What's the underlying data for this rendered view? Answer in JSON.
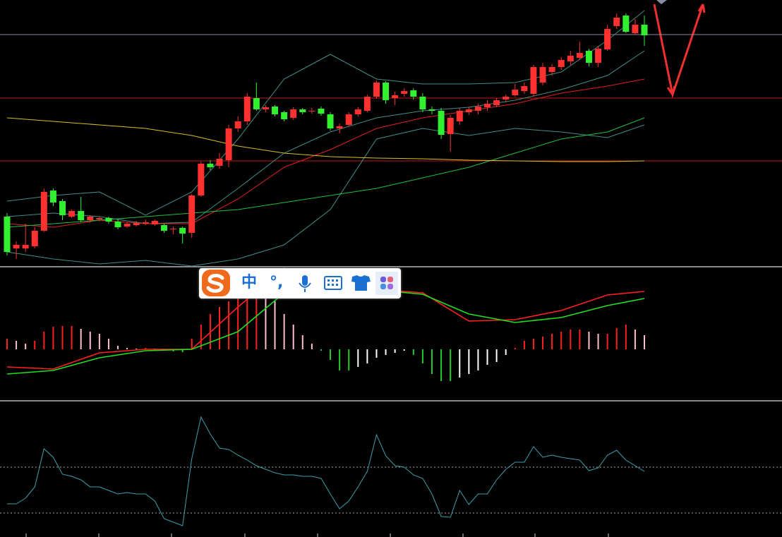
{
  "chart_data": [
    {
      "type": "candlestick",
      "ylim": [
        0,
        377
      ],
      "up_color": "#ff3030",
      "down_color": "#30f030",
      "hlines": [
        {
          "value": 328,
          "color": "#8a8aa0"
        },
        {
          "value": 238,
          "color": "#c01818"
        },
        {
          "value": 149,
          "color": "#c01818"
        }
      ],
      "open": [
        70,
        25,
        25,
        28,
        50,
        107,
        92,
        70,
        78,
        65,
        66,
        68,
        63,
        56,
        58,
        60,
        59,
        58,
        52,
        54,
        47,
        100,
        145,
        142,
        150,
        195,
        205,
        238,
        222,
        226,
        218,
        210,
        222,
        219,
        223,
        215,
        195,
        200,
        215,
        220,
        240,
        260,
        238,
        244,
        249,
        240,
        222,
        220,
        187,
        205,
        218,
        220,
        225,
        228,
        236,
        242,
        248,
        244,
        260,
        275,
        282,
        290,
        295,
        305,
        288,
        307,
        340,
        355,
        330,
        342
      ],
      "high": [
        75,
        35,
        60,
        55,
        110,
        110,
        95,
        80,
        98,
        72,
        70,
        70,
        66,
        62,
        64,
        66,
        66,
        60,
        56,
        56,
        102,
        148,
        150,
        160,
        200,
        212,
        245,
        260,
        228,
        228,
        220,
        225,
        224,
        224,
        226,
        218,
        202,
        218,
        225,
        243,
        263,
        262,
        247,
        252,
        252,
        245,
        226,
        224,
        214,
        224,
        226,
        230,
        235,
        238,
        243,
        258,
        260,
        285,
        288,
        286,
        296,
        305,
        318,
        308,
        312,
        342,
        358,
        358,
        350,
        355
      ],
      "low": [
        15,
        10,
        20,
        25,
        48,
        85,
        65,
        68,
        62,
        62,
        63,
        60,
        52,
        54,
        56,
        58,
        57,
        47,
        45,
        32,
        40,
        98,
        136,
        138,
        140,
        190,
        200,
        220,
        218,
        212,
        205,
        207,
        215,
        216,
        213,
        192,
        188,
        198,
        212,
        218,
        237,
        230,
        228,
        240,
        236,
        218,
        215,
        180,
        162,
        200,
        214,
        215,
        220,
        225,
        232,
        240,
        244,
        240,
        256,
        270,
        278,
        285,
        292,
        283,
        282,
        305,
        336,
        330,
        328,
        312
      ],
      "close": [
        20,
        30,
        30,
        50,
        105,
        90,
        72,
        78,
        65,
        70,
        68,
        63,
        55,
        60,
        61,
        62,
        64,
        50,
        53,
        46,
        100,
        145,
        140,
        152,
        195,
        205,
        240,
        222,
        225,
        215,
        208,
        222,
        218,
        220,
        216,
        195,
        198,
        215,
        222,
        240,
        260,
        235,
        242,
        248,
        240,
        222,
        220,
        186,
        210,
        220,
        222,
        226,
        230,
        235,
        240,
        250,
        255,
        282,
        282,
        282,
        292,
        298,
        302,
        288,
        308,
        336,
        352,
        332,
        342,
        327
      ],
      "series": [
        {
          "color": "#3f8f86",
          "x": [
            0,
            5,
            10,
            15,
            20,
            25,
            30,
            35,
            40,
            45,
            50,
            55,
            60,
            65,
            69
          ],
          "values": [
            92,
            100,
            105,
            72,
            105,
            180,
            265,
            300,
            265,
            258,
            258,
            260,
            275,
            320,
            362
          ]
        },
        {
          "color": "#3f8f86",
          "x": [
            0,
            5,
            10,
            15,
            20,
            25,
            30,
            35,
            40,
            45,
            50,
            55,
            60,
            65,
            69
          ],
          "values": [
            70,
            75,
            70,
            60,
            62,
            110,
            160,
            190,
            210,
            220,
            225,
            235,
            250,
            270,
            305
          ]
        },
        {
          "color": "#3f8f86",
          "x": [
            0,
            5,
            10,
            15,
            20,
            25,
            30,
            35,
            40,
            45,
            50,
            55,
            60,
            65,
            69
          ],
          "values": [
            20,
            10,
            3,
            8,
            0,
            10,
            30,
            80,
            180,
            195,
            185,
            195,
            190,
            182,
            200
          ]
        },
        {
          "color": "#e02020",
          "x": [
            0,
            5,
            10,
            15,
            20,
            25,
            30,
            35,
            40,
            45,
            50,
            55,
            60,
            65,
            69
          ],
          "values": [
            60,
            55,
            65,
            60,
            60,
            95,
            140,
            165,
            195,
            210,
            220,
            230,
            245,
            255,
            265
          ]
        },
        {
          "color": "#20c040",
          "x": [
            0,
            5,
            10,
            15,
            20,
            25,
            30,
            35,
            40,
            45,
            50,
            55,
            60,
            65,
            69
          ],
          "values": [
            55,
            60,
            65,
            70,
            75,
            80,
            90,
            100,
            110,
            125,
            140,
            160,
            180,
            190,
            210
          ]
        },
        {
          "color": "#d8c020",
          "x": [
            0,
            5,
            10,
            15,
            20,
            25,
            30,
            35,
            40,
            45,
            50,
            55,
            60,
            65,
            69
          ],
          "values": [
            210,
            205,
            200,
            195,
            185,
            170,
            160,
            155,
            153,
            152,
            150,
            149,
            148,
            148,
            149
          ]
        }
      ]
    },
    {
      "type": "macd",
      "ylim": [
        -72,
        115
      ],
      "histogram": {
        "values": [
          15,
          12,
          8,
          12,
          25,
          32,
          33,
          33,
          29,
          25,
          22,
          15,
          5,
          2,
          1,
          2,
          1,
          -2,
          -3,
          -4,
          15,
          35,
          50,
          60,
          68,
          80,
          85,
          90,
          80,
          68,
          50,
          35,
          20,
          8,
          -2,
          -15,
          -30,
          -30,
          -25,
          -20,
          -12,
          -8,
          -5,
          -2,
          -8,
          -20,
          -35,
          -45,
          -45,
          -40,
          -35,
          -30,
          -22,
          -18,
          -8,
          2,
          12,
          15,
          18,
          22,
          25,
          28,
          28,
          25,
          22,
          22,
          30,
          35,
          28,
          20
        ],
        "colors": {
          "rise_up": "#ff2020",
          "fall_up": "#ffc0cb",
          "fall_down": "#22cc22",
          "rise_down": "#ffffff"
        }
      },
      "series": [
        {
          "color": "#ff2020",
          "x": [
            0,
            5,
            10,
            15,
            20,
            25,
            30,
            35,
            40,
            45,
            50,
            55,
            60,
            65,
            69
          ],
          "values": [
            -25,
            -28,
            -5,
            0,
            0,
            60,
            115,
            88,
            85,
            80,
            40,
            42,
            55,
            77,
            82
          ]
        },
        {
          "color": "#20e020",
          "x": [
            0,
            5,
            10,
            15,
            20,
            25,
            30,
            35,
            40,
            45,
            50,
            55,
            60,
            65,
            69
          ],
          "values": [
            -35,
            -30,
            -12,
            -2,
            0,
            25,
            80,
            86,
            84,
            78,
            50,
            38,
            45,
            62,
            72
          ]
        }
      ]
    },
    {
      "type": "line",
      "ylim": [
        0,
        191
      ],
      "ref_lines": [
        {
          "value": 99,
          "color": "#aaaaaa"
        },
        {
          "value": 34,
          "color": "#aaaaaa"
        }
      ],
      "series": [
        {
          "color": "#3aa0a8",
          "values": [
            47,
            47,
            55,
            71,
            125,
            113,
            89,
            86,
            81,
            71,
            71,
            66,
            61,
            63,
            61,
            61,
            51,
            26,
            21,
            16,
            111,
            170,
            146,
            126,
            124,
            116,
            109,
            101,
            96,
            91,
            88,
            88,
            86,
            86,
            83,
            61,
            40,
            51,
            71,
            93,
            145,
            115,
            101,
            99,
            88,
            83,
            61,
            29,
            28,
            66,
            46,
            61,
            61,
            81,
            96,
            106,
            106,
            128,
            113,
            116,
            113,
            111,
            109,
            94,
            98,
            116,
            123,
            109,
            101,
            93
          ]
        }
      ]
    }
  ],
  "ime": {
    "items": [
      "中",
      "°,"
    ]
  }
}
